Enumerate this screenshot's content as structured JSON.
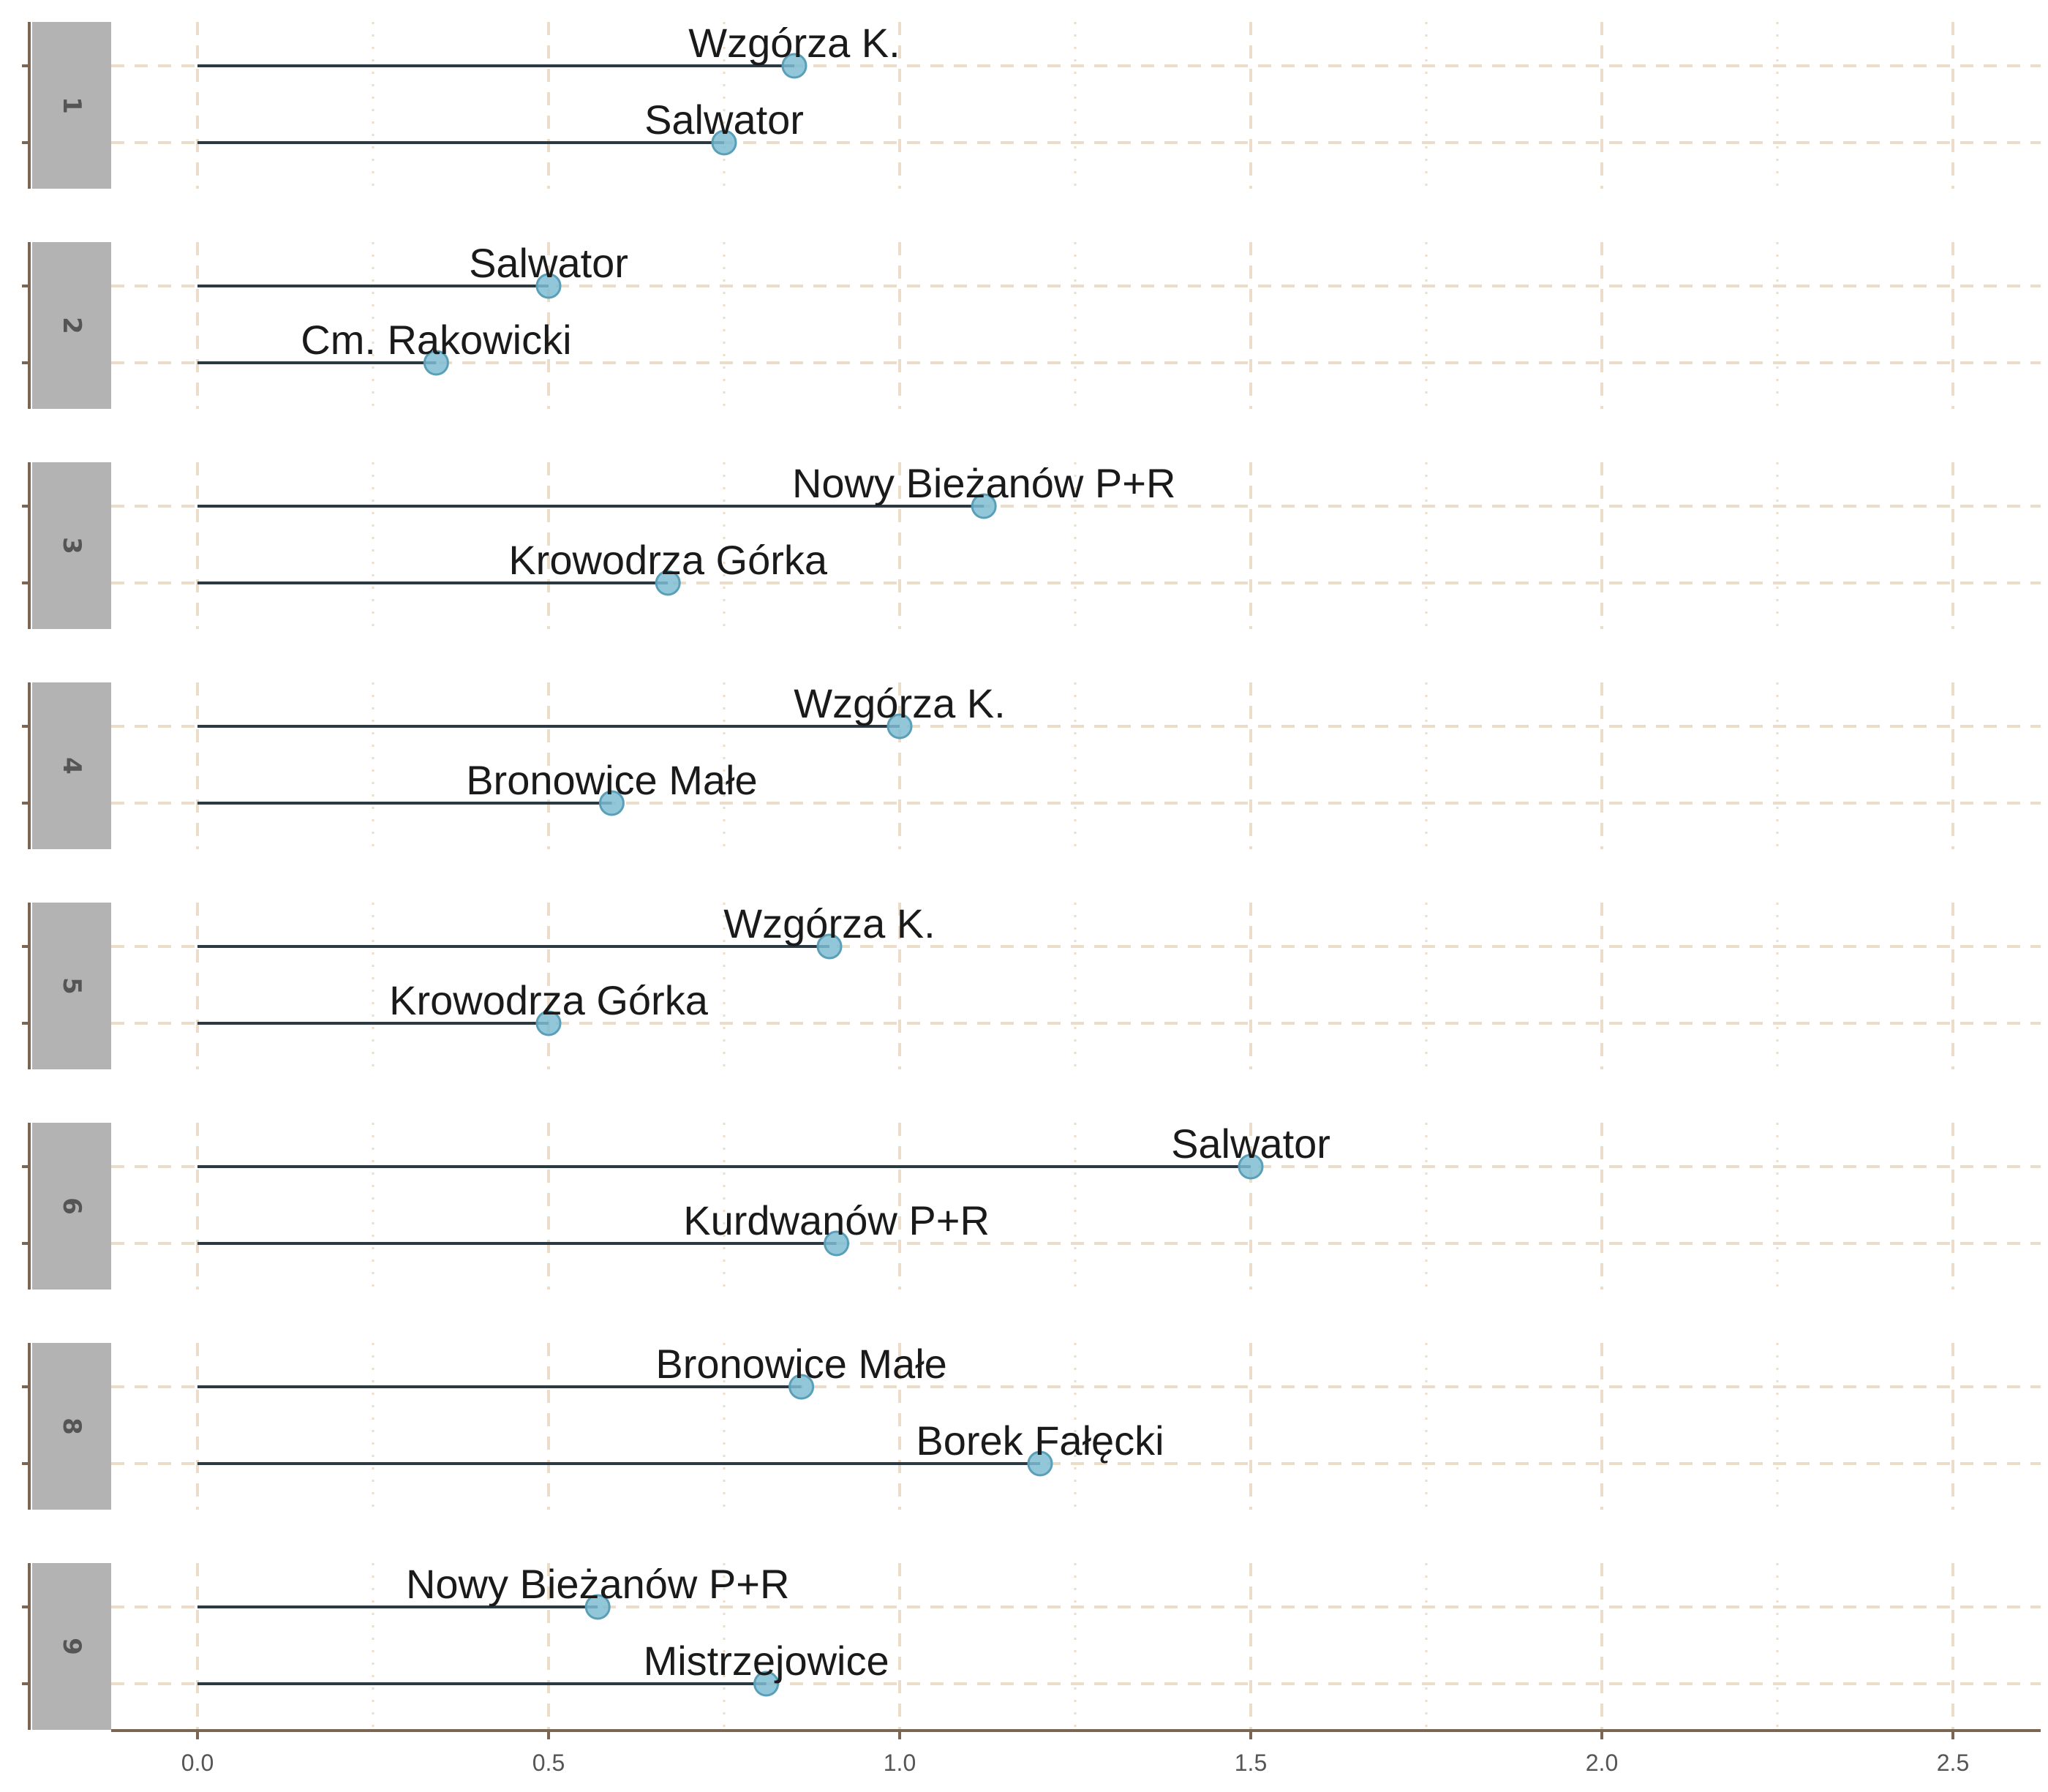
{
  "chart_data": {
    "type": "lollipop",
    "title": "",
    "xlabel": "",
    "ylabel": "",
    "xlim": [
      -0.125,
      2.625
    ],
    "x_ticks": [
      "0.0",
      "0.5",
      "1.0",
      "1.5",
      "2.0",
      "2.5"
    ],
    "grid": true,
    "colors": {
      "point": "#7fbcd2",
      "point_stroke": "#5a9fb8",
      "segment": "#2b3a42",
      "grid": "#ecdcca",
      "axis": "#7a6652",
      "strip_bg": "#b3b3b3",
      "strip_text": "#555555"
    },
    "panels": [
      {
        "facet": "1",
        "items": [
          {
            "label": "Wzgórza K.",
            "value": 0.85
          },
          {
            "label": "Salwator",
            "value": 0.75
          }
        ]
      },
      {
        "facet": "2",
        "items": [
          {
            "label": "Salwator",
            "value": 0.5
          },
          {
            "label": "Cm. Rakowicki",
            "value": 0.34
          }
        ]
      },
      {
        "facet": "3",
        "items": [
          {
            "label": "Nowy Bieżanów P+R",
            "value": 1.12
          },
          {
            "label": "Krowodrza Górka",
            "value": 0.67
          }
        ]
      },
      {
        "facet": "4",
        "items": [
          {
            "label": "Wzgórza K.",
            "value": 1.0
          },
          {
            "label": "Bronowice Małe",
            "value": 0.59
          }
        ]
      },
      {
        "facet": "5",
        "items": [
          {
            "label": "Wzgórza K.",
            "value": 0.9
          },
          {
            "label": "Krowodrza Górka",
            "value": 0.5
          }
        ]
      },
      {
        "facet": "6",
        "items": [
          {
            "label": "Salwator",
            "value": 1.5
          },
          {
            "label": "Kurdwanów P+R",
            "value": 0.91
          }
        ]
      },
      {
        "facet": "8",
        "items": [
          {
            "label": "Bronowice Małe",
            "value": 0.86
          },
          {
            "label": "Borek Fałęcki",
            "value": 1.2
          }
        ]
      },
      {
        "facet": "9",
        "items": [
          {
            "label": "Nowy Bieżanów P+R",
            "value": 0.57
          },
          {
            "label": "Mistrzejowice",
            "value": 0.81
          }
        ]
      }
    ]
  }
}
